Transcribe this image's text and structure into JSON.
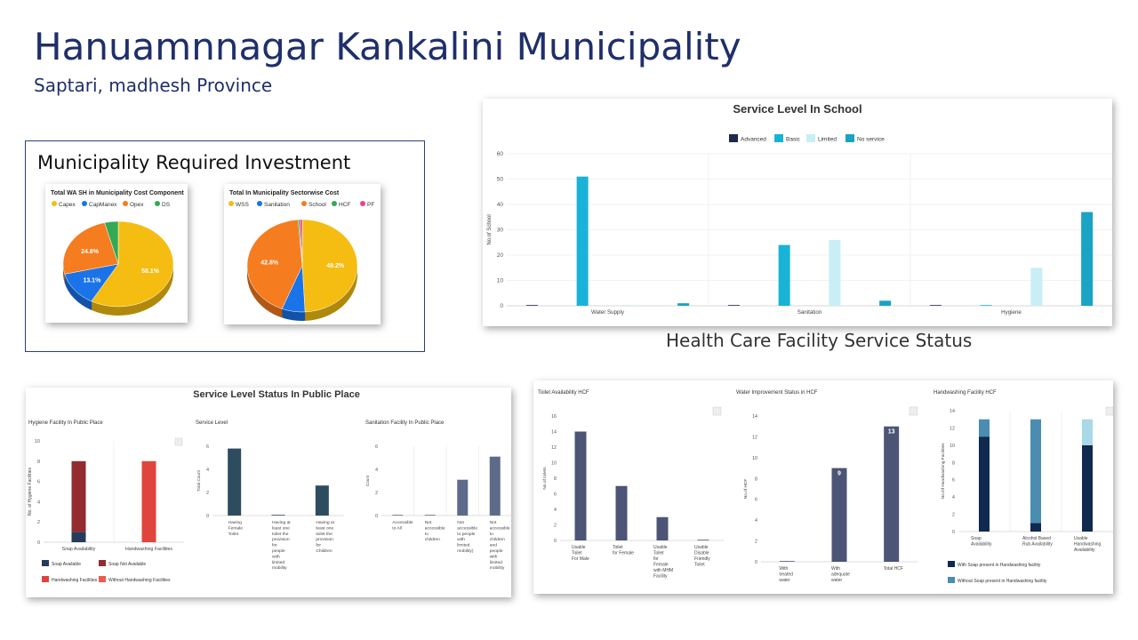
{
  "page": {
    "title": "Hanuamnnagar Kankalini Municipality",
    "subtitle": "Saptari, madhesh Province",
    "invest_title": "Municipality Required Investment",
    "hcf_section_title": "Health Care Facility Service Status"
  },
  "chart_data": [
    {
      "id": "pie1",
      "type": "pie",
      "title": "Total WA SH in Municipality Cost Component",
      "legend": [
        "Capex",
        "CapManex",
        "Opex",
        "DS"
      ],
      "colors": [
        "#f5bd12",
        "#1a73e8",
        "#f57c1f",
        "#34a853"
      ],
      "values": [
        58.1,
        13.1,
        24.8,
        4.0
      ],
      "data_labels": [
        "58.1%",
        "13.1%",
        "24.8%",
        ""
      ]
    },
    {
      "id": "pie2",
      "type": "pie",
      "title": "Total In Municipality Sectorwise Cost",
      "legend": [
        "WSS",
        "Sanitation",
        "School",
        "HCF",
        "PF"
      ],
      "colors": [
        "#f5bd12",
        "#1a73e8",
        "#f57c1f",
        "#34a853",
        "#e84393"
      ],
      "values": [
        49.2,
        6.8,
        42.8,
        0.5,
        0.7
      ],
      "data_labels": [
        "49.2%",
        "",
        "42.8%",
        "",
        ""
      ]
    },
    {
      "id": "school",
      "type": "bar",
      "title": "Service Level In School",
      "ylabel": "No.of School",
      "ylim": [
        0,
        60
      ],
      "yticks": [
        0,
        10,
        20,
        30,
        40,
        50,
        60
      ],
      "grid": true,
      "legend_position": "top",
      "categories": [
        "Water Supply",
        "Sanitation",
        "Hygiene"
      ],
      "series": [
        {
          "name": "Advanced",
          "color": "#1e2a4a",
          "values": [
            0,
            0,
            0
          ]
        },
        {
          "name": "Basic",
          "color": "#1ab3d8",
          "values": [
            51,
            24,
            0
          ]
        },
        {
          "name": "Limited",
          "color": "#c9eef6",
          "values": [
            0,
            26,
            15
          ]
        },
        {
          "name": "No service",
          "color": "#1aa3c4",
          "values": [
            1,
            2,
            37
          ]
        }
      ]
    },
    {
      "id": "hygiene_pp",
      "type": "bar",
      "title": "Hygiene Facility In Public Place",
      "ylabel": "No. of Hygiene Facilities",
      "ylim": [
        0,
        10
      ],
      "yticks": [
        0,
        2,
        4,
        6,
        8,
        10
      ],
      "stacked": true,
      "categories": [
        "Soap Availability",
        "Handwashing Facilities"
      ],
      "series": [
        {
          "name": "Soap Available",
          "color": "#263a5c",
          "values": [
            1,
            0
          ]
        },
        {
          "name": "Soap Not Available",
          "color": "#922c30",
          "values": [
            7,
            0
          ]
        },
        {
          "name": "Handwashing Facilities",
          "color": "#e0453d",
          "values": [
            0,
            8
          ]
        },
        {
          "name": "Without Handwashing Facilities",
          "color": "#ee5a4c",
          "values": [
            0,
            0
          ]
        }
      ]
    },
    {
      "id": "service_pp",
      "type": "bar",
      "title": "Service Level",
      "ylabel": "Total Count",
      "ylim": [
        0,
        6
      ],
      "yticks": [
        0,
        2,
        4,
        6
      ],
      "color": "#2d4c60",
      "categories": [
        [
          "Having",
          "Female",
          "Toilet"
        ],
        [
          "Having at",
          "least one",
          "toilet the",
          "provision",
          "for",
          "people",
          "with",
          "limited",
          "mobility"
        ],
        [
          "Having at",
          "least one",
          "toilet the",
          "provision",
          "for",
          "Children"
        ]
      ],
      "values": [
        5.8,
        0.05,
        2.6
      ]
    },
    {
      "id": "sanitation_pp",
      "type": "bar",
      "title": "Sanitation Facility In Public Place",
      "ylabel": "Count",
      "ylim": [
        0,
        6
      ],
      "yticks": [
        0,
        2,
        4,
        6
      ],
      "color": "#5d6a8a",
      "categories": [
        [
          "Accessible",
          "to All"
        ],
        [
          "Not",
          "accessible",
          "to",
          "children"
        ],
        [
          "Not",
          "accessible",
          "to people",
          "with",
          "limited",
          "mobility)"
        ],
        [
          "Not",
          "accessible",
          "to",
          "children",
          "and",
          "people",
          "with",
          "limited",
          "mobility"
        ]
      ],
      "values": [
        0.05,
        0.05,
        3.1,
        5.1
      ]
    },
    {
      "id": "toilet_hcf",
      "type": "bar",
      "title": "Toilet Availability HCF",
      "ylabel": "No.of toilets",
      "ylim": [
        0,
        16
      ],
      "yticks": [
        0,
        2,
        4,
        6,
        8,
        10,
        12,
        14,
        16
      ],
      "color": "#4c5575",
      "categories": [
        [
          "Usable",
          "Toilet",
          "For Male"
        ],
        [
          "Toilet",
          "for Female"
        ],
        [
          "Usable",
          "Toilet",
          "for",
          "Female",
          "with MHM",
          "Facility"
        ],
        [
          "Usable",
          "Disable",
          "Friendly",
          "Toilet"
        ]
      ],
      "values": [
        14,
        7,
        3,
        0.05
      ]
    },
    {
      "id": "water_hcf",
      "type": "bar",
      "title": "Water Improvement Status in HCF",
      "ylabel": "No.of HCF",
      "ylim": [
        0,
        14
      ],
      "yticks": [
        0,
        2,
        4,
        6,
        8,
        10,
        12,
        14
      ],
      "color": "#4c5575",
      "categories": [
        [
          "With",
          "treated",
          "water"
        ],
        [
          "With",
          "adequate",
          "water"
        ],
        [
          "Total HCF"
        ]
      ],
      "values": [
        0.05,
        9,
        13
      ],
      "data_labels": [
        "",
        "9",
        "13"
      ]
    },
    {
      "id": "handwash_hcf",
      "type": "bar",
      "title": "Handwashing Facility HCF",
      "ylabel": "No.Of Handwashing Facilities",
      "ylim": [
        0,
        14
      ],
      "yticks": [
        0,
        2,
        4,
        6,
        8,
        10,
        12,
        14
      ],
      "stacked": true,
      "categories": [
        [
          "Soap",
          "Availability"
        ],
        [
          "Alcohol Based",
          "Rub Availability"
        ],
        [
          "Usable",
          "Handwashing",
          "Availability"
        ]
      ],
      "series": [
        {
          "name": "With Soap present in Handwashing facility",
          "color": "#0f2a4e",
          "values": [
            11,
            1,
            10
          ]
        },
        {
          "name": "Without Soap present in Handwashing facility",
          "color": "#4a8db0",
          "values": [
            2,
            12,
            0
          ]
        },
        {
          "name": "",
          "color": "#a9d8e6",
          "values": [
            0,
            0,
            3
          ]
        }
      ]
    }
  ],
  "public_place": {
    "title": "Service Level Status In Public Place"
  }
}
